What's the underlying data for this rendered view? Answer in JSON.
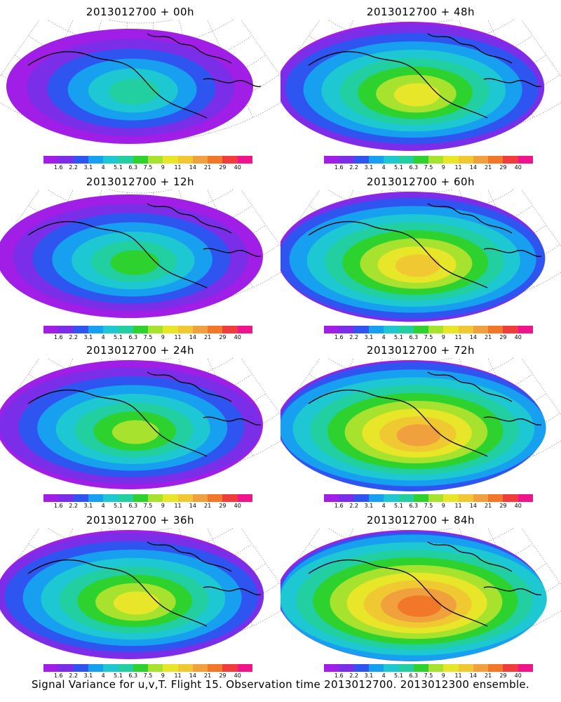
{
  "panels": [
    {
      "title": "2013012700 + 00h"
    },
    {
      "title": "2013012700 + 48h"
    },
    {
      "title": "2013012700 + 12h"
    },
    {
      "title": "2013012700 + 60h"
    },
    {
      "title": "2013012700 + 24h"
    },
    {
      "title": "2013012700 + 72h"
    },
    {
      "title": "2013012700 + 36h"
    },
    {
      "title": "2013012700 + 84h"
    }
  ],
  "legend": {
    "labels": [
      "1.6",
      "2.2",
      "3.1",
      "4",
      "5.1",
      "6.3",
      "7.5",
      "9",
      "11",
      "14",
      "21",
      "29",
      "40"
    ],
    "colors": [
      "#a01ee6",
      "#7a2ee8",
      "#2f55f0",
      "#18a0f0",
      "#1ec8d2",
      "#22cfa0",
      "#2ed22e",
      "#a6e22e",
      "#e8e628",
      "#f0c832",
      "#f0a03c",
      "#f07828",
      "#f03c3c",
      "#f0148c"
    ]
  },
  "footer": "Signal Variance for u,v,T. Flight 15. Observation time 2013012700. 2013012300 ensemble."
}
